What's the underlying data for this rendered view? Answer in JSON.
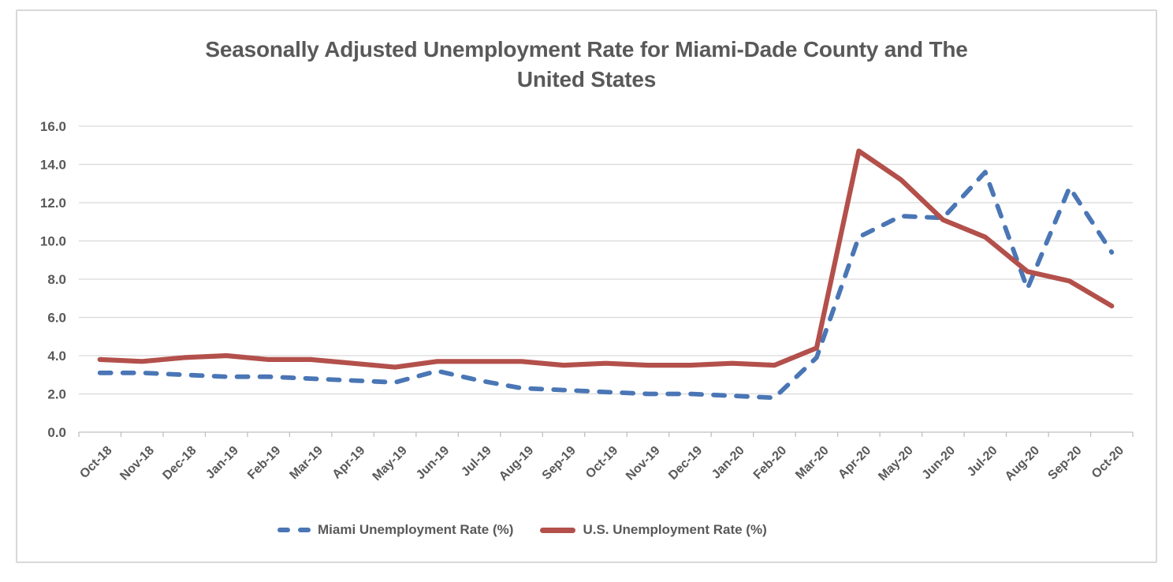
{
  "header": {
    "title_line1": "Seasonally Adjusted Unemployment Rate for Miami-Dade County and The",
    "title_line2": "United States"
  },
  "colors": {
    "title_text": "#595959",
    "axis_text": "#595959",
    "gridline": "#d9d9d9",
    "axis_line": "#bfbfbf",
    "frame_border": "#d8d8d8",
    "miami_blue": "#4a76b5",
    "us_red": "#b3504b"
  },
  "chart_data": {
    "type": "line",
    "title": "Seasonally Adjusted Unemployment Rate for Miami-Dade County and The United States",
    "xlabel": "",
    "ylabel": "",
    "grid": true,
    "legend_position": "bottom",
    "ylim": [
      0,
      16
    ],
    "ytick_step": 2,
    "ytick_labels": [
      "0.0",
      "2.0",
      "4.0",
      "6.0",
      "8.0",
      "10.0",
      "12.0",
      "14.0",
      "16.0"
    ],
    "categories": [
      "Oct-18",
      "Nov-18",
      "Dec-18",
      "Jan-19",
      "Feb-19",
      "Mar-19",
      "Apr-19",
      "May-19",
      "Jun-19",
      "Jul-19",
      "Aug-19",
      "Sep-19",
      "Oct-19",
      "Nov-19",
      "Dec-19",
      "Jan-20",
      "Feb-20",
      "Mar-20",
      "Apr-20",
      "May-20",
      "Jun-20",
      "Jul-20",
      "Aug-20",
      "Sep-20",
      "Oct-20"
    ],
    "series": [
      {
        "name": "Miami Unemployment Rate (%)",
        "color": "#4a76b5",
        "line_style": "dashed",
        "values": [
          3.1,
          3.1,
          3.0,
          2.9,
          2.9,
          2.8,
          2.7,
          2.6,
          3.2,
          2.7,
          2.3,
          2.2,
          2.1,
          2.0,
          2.0,
          1.9,
          1.8,
          3.9,
          10.2,
          11.3,
          11.2,
          13.6,
          7.5,
          12.8,
          9.4
        ]
      },
      {
        "name": "U.S. Unemployment Rate (%)",
        "color": "#b3504b",
        "line_style": "solid",
        "values": [
          3.8,
          3.7,
          3.9,
          4.0,
          3.8,
          3.8,
          3.6,
          3.4,
          3.7,
          3.7,
          3.7,
          3.5,
          3.6,
          3.5,
          3.5,
          3.6,
          3.5,
          4.4,
          14.7,
          13.2,
          11.1,
          10.2,
          8.4,
          7.9,
          6.6
        ]
      }
    ]
  }
}
